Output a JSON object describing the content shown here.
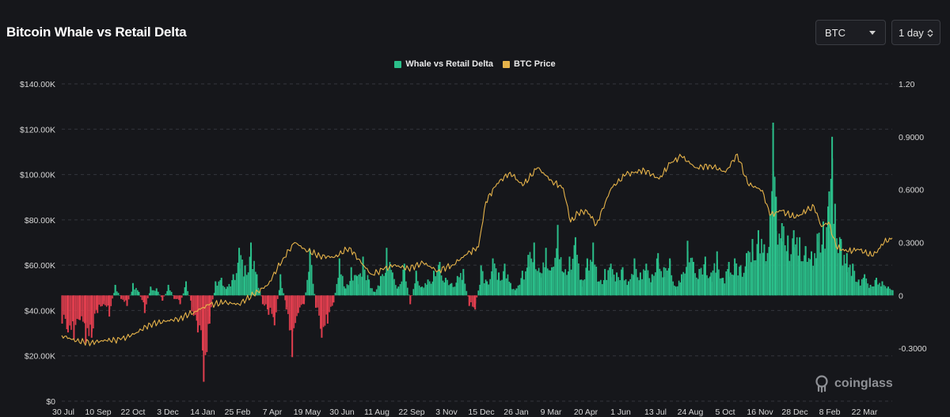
{
  "title": "Bitcoin Whale vs Retail Delta",
  "controls": {
    "coin": "BTC",
    "interval": "1 day"
  },
  "legend": [
    {
      "label": "Whale vs Retail Delta",
      "color": "#2bbf8a"
    },
    {
      "label": "BTC Price",
      "color": "#e6b34a"
    }
  ],
  "brand": "coinglass",
  "chart_data": {
    "type": "bar",
    "title": "Bitcoin Whale vs Retail Delta",
    "x_tick_labels": [
      "30 Jul",
      "10 Sep",
      "22 Oct",
      "3 Dec",
      "14 Jan",
      "25 Feb",
      "7 Apr",
      "19 May",
      "30 Jun",
      "11 Aug",
      "22 Sep",
      "3 Nov",
      "15 Dec",
      "26 Jan",
      "9 Mar",
      "20 Apr",
      "1 Jun",
      "13 Jul",
      "24 Aug",
      "5 Oct",
      "16 Nov",
      "28 Dec",
      "8 Feb",
      "22 Mar"
    ],
    "left_axis": {
      "ticks": [
        "$0",
        "$20.00K",
        "$40.00K",
        "$60.00K",
        "$80.00K",
        "$100.00K",
        "$120.00K",
        "$140.00K"
      ],
      "ylim": [
        0,
        140000
      ],
      "series": "BTC Price"
    },
    "right_axis": {
      "ticks": [
        "-0.3000",
        "0",
        "0.3000",
        "0.6000",
        "0.9000",
        "1.20"
      ],
      "ylim": [
        -0.6,
        1.2
      ],
      "series": "Whale vs Retail Delta"
    },
    "grid": true,
    "legend_position": "top-center",
    "series": [
      {
        "name": "Whale vs Retail Delta",
        "kind": "bar",
        "axis": "right",
        "positive_color": "#2bbf8a",
        "negative_color": "#e03e4e",
        "points": [
          [
            0,
            -0.16
          ],
          [
            8,
            -0.21
          ],
          [
            16,
            -0.25
          ],
          [
            24,
            -0.14
          ],
          [
            32,
            -0.27
          ],
          [
            40,
            -0.24
          ],
          [
            48,
            -0.1
          ],
          [
            56,
            -0.05
          ],
          [
            64,
            -0.12
          ],
          [
            72,
            0.06
          ],
          [
            80,
            -0.02
          ],
          [
            88,
            -0.06
          ],
          [
            96,
            0.07
          ],
          [
            104,
            0.02
          ],
          [
            112,
            -0.1
          ],
          [
            120,
            0.05
          ],
          [
            128,
            0.04
          ],
          [
            136,
            -0.03
          ],
          [
            144,
            0.06
          ],
          [
            152,
            -0.02
          ],
          [
            160,
            -0.05
          ],
          [
            168,
            0.08
          ],
          [
            176,
            -0.09
          ],
          [
            184,
            -0.21
          ],
          [
            192,
            -0.49
          ],
          [
            200,
            -0.16
          ],
          [
            208,
            0.08
          ],
          [
            216,
            0.1
          ],
          [
            224,
            0.05
          ],
          [
            232,
            0.12
          ],
          [
            240,
            0.27
          ],
          [
            248,
            0.17
          ],
          [
            256,
            0.3
          ],
          [
            264,
            0.12
          ],
          [
            272,
            -0.05
          ],
          [
            280,
            -0.11
          ],
          [
            288,
            -0.17
          ],
          [
            296,
            0.12
          ],
          [
            304,
            -0.08
          ],
          [
            312,
            -0.35
          ],
          [
            320,
            -0.1
          ],
          [
            328,
            -0.05
          ],
          [
            336,
            0.26
          ],
          [
            344,
            -0.07
          ],
          [
            352,
            -0.24
          ],
          [
            360,
            -0.16
          ],
          [
            368,
            -0.04
          ],
          [
            376,
            0.21
          ],
          [
            384,
            0.04
          ],
          [
            392,
            0.16
          ],
          [
            400,
            0.11
          ],
          [
            408,
            0.22
          ],
          [
            416,
            0.09
          ],
          [
            424,
            0.02
          ],
          [
            432,
            0.11
          ],
          [
            440,
            0.27
          ],
          [
            448,
            0.13
          ],
          [
            456,
            0.05
          ],
          [
            464,
            0.18
          ],
          [
            472,
            -0.05
          ],
          [
            480,
            0.14
          ],
          [
            488,
            0.05
          ],
          [
            496,
            0.09
          ],
          [
            504,
            0.14
          ],
          [
            512,
            0.19
          ],
          [
            520,
            0.1
          ],
          [
            528,
            0.07
          ],
          [
            536,
            0.11
          ],
          [
            544,
            0.15
          ],
          [
            552,
            -0.06
          ],
          [
            560,
            -0.08
          ],
          [
            568,
            0.17
          ],
          [
            576,
            0.08
          ],
          [
            584,
            0.21
          ],
          [
            592,
            0.13
          ],
          [
            600,
            0.18
          ],
          [
            608,
            0.07
          ],
          [
            616,
            0.04
          ],
          [
            624,
            0.14
          ],
          [
            632,
            0.23
          ],
          [
            640,
            0.3
          ],
          [
            648,
            0.13
          ],
          [
            656,
            0.27
          ],
          [
            664,
            0.16
          ],
          [
            672,
            0.4
          ],
          [
            680,
            0.13
          ],
          [
            688,
            0.22
          ],
          [
            696,
            0.33
          ],
          [
            704,
            0.09
          ],
          [
            712,
            0.21
          ],
          [
            720,
            0.3
          ],
          [
            728,
            0.08
          ],
          [
            736,
            0.15
          ],
          [
            744,
            0.18
          ],
          [
            752,
            0.13
          ],
          [
            760,
            0.16
          ],
          [
            768,
            0.08
          ],
          [
            776,
            0.21
          ],
          [
            784,
            0.13
          ],
          [
            792,
            0.18
          ],
          [
            800,
            0.12
          ],
          [
            808,
            0.24
          ],
          [
            816,
            0.16
          ],
          [
            824,
            0.21
          ],
          [
            832,
            0.05
          ],
          [
            840,
            0.12
          ],
          [
            848,
            0.31
          ],
          [
            856,
            0.19
          ],
          [
            864,
            0.15
          ],
          [
            872,
            0.22
          ],
          [
            880,
            0.13
          ],
          [
            888,
            0.25
          ],
          [
            896,
            0.1
          ],
          [
            904,
            0.19
          ],
          [
            912,
            0.21
          ],
          [
            920,
            0.17
          ],
          [
            928,
            0.24
          ],
          [
            936,
            0.32
          ],
          [
            944,
            0.37
          ],
          [
            952,
            0.29
          ],
          [
            960,
            0.46
          ],
          [
            964,
            0.98
          ],
          [
            968,
            0.56
          ],
          [
            976,
            0.41
          ],
          [
            984,
            0.34
          ],
          [
            992,
            0.37
          ],
          [
            1000,
            0.33
          ],
          [
            1008,
            0.28
          ],
          [
            1016,
            0.25
          ],
          [
            1024,
            0.35
          ],
          [
            1032,
            0.42
          ],
          [
            1040,
            0.59
          ],
          [
            1044,
            0.9
          ],
          [
            1048,
            0.52
          ],
          [
            1056,
            0.32
          ],
          [
            1064,
            0.24
          ],
          [
            1072,
            0.18
          ],
          [
            1080,
            0.09
          ],
          [
            1088,
            0.12
          ],
          [
            1096,
            0.06
          ],
          [
            1104,
            0.1
          ],
          [
            1112,
            0.08
          ],
          [
            1120,
            0.05
          ]
        ]
      },
      {
        "name": "BTC Price",
        "kind": "line",
        "axis": "left",
        "color": "#e6b34a",
        "points": [
          [
            0,
            29000
          ],
          [
            20,
            26500
          ],
          [
            40,
            25900
          ],
          [
            60,
            26800
          ],
          [
            80,
            27100
          ],
          [
            100,
            30000
          ],
          [
            120,
            34000
          ],
          [
            140,
            35200
          ],
          [
            160,
            36500
          ],
          [
            180,
            39500
          ],
          [
            200,
            42500
          ],
          [
            220,
            43500
          ],
          [
            240,
            42800
          ],
          [
            260,
            47000
          ],
          [
            280,
            51500
          ],
          [
            300,
            63000
          ],
          [
            316,
            70000
          ],
          [
            330,
            67000
          ],
          [
            350,
            64000
          ],
          [
            370,
            63500
          ],
          [
            390,
            67800
          ],
          [
            406,
            61000
          ],
          [
            420,
            56000
          ],
          [
            436,
            58000
          ],
          [
            450,
            60000
          ],
          [
            470,
            58500
          ],
          [
            490,
            61000
          ],
          [
            510,
            57500
          ],
          [
            530,
            60200
          ],
          [
            550,
            65000
          ],
          [
            565,
            68000
          ],
          [
            575,
            88000
          ],
          [
            590,
            96000
          ],
          [
            608,
            101000
          ],
          [
            625,
            95000
          ],
          [
            645,
            103000
          ],
          [
            665,
            97000
          ],
          [
            680,
            94000
          ],
          [
            690,
            79000
          ],
          [
            700,
            83000
          ],
          [
            712,
            84000
          ],
          [
            725,
            78000
          ],
          [
            745,
            94000
          ],
          [
            765,
            100000
          ],
          [
            790,
            102000
          ],
          [
            810,
            98000
          ],
          [
            825,
            105000
          ],
          [
            840,
            108000
          ],
          [
            860,
            103000
          ],
          [
            880,
            104000
          ],
          [
            900,
            101000
          ],
          [
            916,
            109000
          ],
          [
            930,
            96000
          ],
          [
            950,
            93000
          ],
          [
            960,
            82000
          ],
          [
            975,
            84000
          ],
          [
            995,
            81000
          ],
          [
            1010,
            84000
          ],
          [
            1020,
            86000
          ],
          [
            1030,
            77000
          ],
          [
            1040,
            79000
          ],
          [
            1050,
            68000
          ],
          [
            1065,
            66000
          ],
          [
            1080,
            67000
          ],
          [
            1100,
            64000
          ],
          [
            1115,
            70000
          ],
          [
            1126,
            72000
          ]
        ]
      }
    ]
  }
}
